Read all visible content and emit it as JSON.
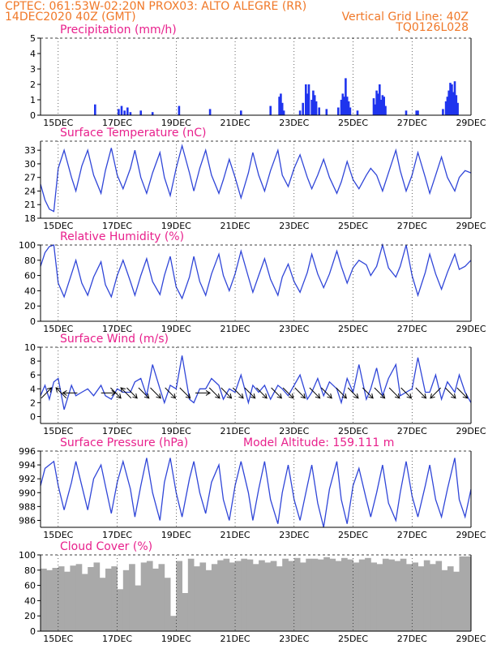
{
  "header": {
    "line1_left": "CPTEC:  061:53W-02:20N  PROX03: ALTO ALEGRE (RR)",
    "line2_left": "14DEC2020 40Z (GMT)",
    "line2_right": "Vertical Grid Line: 40Z",
    "line3_right": "TQ0126L028"
  },
  "colors": {
    "header": "#f07828",
    "panel_title": "#e8208c",
    "series": "#3046d8",
    "precip_bar": "#1f34ee",
    "cloud_fill": "#a9a9a9"
  },
  "chart_data": [
    {
      "id": "precip",
      "type": "bar",
      "title": "Precipitation (mm/h)",
      "x_labels": [
        "15DEC",
        "17DEC",
        "19DEC",
        "21DEC",
        "23DEC",
        "25DEC",
        "27DEC",
        "29DEC"
      ],
      "ylim": [
        0,
        5
      ],
      "yticks": [
        0,
        1,
        2,
        3,
        4,
        5
      ],
      "grid": "vertical dotted",
      "x_day_range": [
        14.4,
        29.0
      ],
      "x": [
        16.25,
        17.05,
        17.15,
        17.25,
        17.35,
        17.45,
        17.8,
        18.2,
        19.1,
        20.15,
        21.2,
        22.2,
        22.5,
        22.55,
        22.6,
        22.65,
        23.2,
        23.3,
        23.4,
        23.45,
        23.5,
        23.6,
        23.65,
        23.7,
        23.75,
        23.85,
        24.1,
        24.5,
        24.6,
        24.65,
        24.7,
        24.75,
        24.8,
        24.85,
        24.9,
        25.15,
        25.7,
        25.75,
        25.8,
        25.85,
        25.9,
        25.95,
        26.0,
        26.05,
        26.1,
        26.8,
        27.15,
        27.2,
        28.05,
        28.15,
        28.2,
        28.25,
        28.3,
        28.35,
        28.4,
        28.45,
        28.5,
        28.55
      ],
      "values": [
        0.7,
        0.4,
        0.6,
        0.3,
        0.5,
        0.2,
        0.3,
        0.2,
        0.6,
        0.4,
        0.3,
        0.6,
        1.2,
        1.4,
        0.8,
        0.3,
        0.3,
        0.8,
        2.0,
        1.4,
        2.0,
        1.0,
        1.6,
        1.3,
        0.9,
        0.5,
        0.4,
        0.5,
        1.0,
        1.4,
        1.2,
        2.4,
        1.2,
        0.9,
        0.5,
        0.3,
        1.1,
        0.7,
        1.6,
        1.4,
        2.0,
        1.0,
        1.3,
        1.2,
        0.6,
        0.3,
        0.3,
        0.3,
        0.4,
        0.9,
        1.2,
        1.6,
        2.1,
        2.0,
        1.5,
        2.2,
        1.3,
        0.8
      ]
    },
    {
      "id": "temp",
      "type": "line",
      "title": "Surface Temperature (nC)",
      "x_labels": [
        "15DEC",
        "17DEC",
        "19DEC",
        "21DEC",
        "23DEC",
        "25DEC",
        "27DEC",
        "29DEC"
      ],
      "ylim": [
        18,
        35
      ],
      "yticks": [
        18,
        21,
        24,
        27,
        30,
        33
      ],
      "grid": "vertical dotted",
      "x_day_range": [
        14.4,
        29.0
      ],
      "x": [
        14.4,
        14.55,
        14.7,
        14.85,
        15.0,
        15.2,
        15.45,
        15.6,
        15.8,
        16.0,
        16.2,
        16.45,
        16.6,
        16.8,
        17.0,
        17.2,
        17.45,
        17.6,
        17.8,
        18.0,
        18.2,
        18.45,
        18.6,
        18.8,
        19.0,
        19.2,
        19.45,
        19.6,
        19.8,
        20.0,
        20.2,
        20.45,
        20.6,
        20.8,
        21.0,
        21.2,
        21.45,
        21.6,
        21.8,
        22.0,
        22.2,
        22.45,
        22.6,
        22.8,
        23.0,
        23.2,
        23.45,
        23.6,
        23.8,
        24.0,
        24.2,
        24.45,
        24.6,
        24.8,
        25.0,
        25.2,
        25.45,
        25.6,
        25.8,
        26.0,
        26.2,
        26.45,
        26.6,
        26.8,
        27.0,
        27.2,
        27.45,
        27.6,
        27.8,
        28.0,
        28.2,
        28.45,
        28.6,
        28.8,
        29.0
      ],
      "values": [
        25.5,
        22.0,
        20.0,
        19.5,
        29.0,
        33.0,
        27.0,
        24.0,
        29.5,
        33.0,
        27.5,
        23.5,
        28.5,
        33.5,
        27.5,
        24.5,
        29.0,
        33.0,
        27.0,
        23.5,
        28.0,
        32.5,
        27.0,
        23.0,
        29.0,
        34.0,
        28.0,
        24.0,
        29.0,
        33.0,
        27.5,
        23.5,
        26.5,
        31.0,
        27.0,
        22.5,
        28.0,
        32.5,
        27.5,
        24.0,
        28.5,
        33.0,
        27.5,
        25.0,
        29.0,
        32.0,
        27.0,
        24.5,
        27.5,
        31.0,
        27.0,
        23.5,
        26.0,
        30.5,
        26.5,
        24.5,
        27.5,
        29.0,
        27.5,
        24.0,
        28.0,
        33.0,
        28.5,
        24.0,
        27.5,
        32.5,
        27.0,
        23.5,
        27.5,
        31.5,
        27.0,
        24.0,
        27.0,
        28.5,
        28.0
      ]
    },
    {
      "id": "rh",
      "type": "line",
      "title": "Relative Humidity (%)",
      "x_labels": [
        "15DEC",
        "17DEC",
        "19DEC",
        "21DEC",
        "23DEC",
        "25DEC",
        "27DEC",
        "29DEC"
      ],
      "ylim": [
        0,
        100
      ],
      "yticks": [
        0,
        20,
        40,
        60,
        80,
        100
      ],
      "grid": "vertical dotted",
      "x_day_range": [
        14.4,
        29.0
      ],
      "x": [
        14.4,
        14.55,
        14.7,
        14.85,
        15.0,
        15.2,
        15.45,
        15.6,
        15.8,
        16.0,
        16.2,
        16.45,
        16.6,
        16.8,
        17.0,
        17.2,
        17.45,
        17.6,
        17.8,
        18.0,
        18.2,
        18.45,
        18.6,
        18.8,
        19.0,
        19.2,
        19.45,
        19.6,
        19.8,
        20.0,
        20.2,
        20.45,
        20.6,
        20.8,
        21.0,
        21.2,
        21.45,
        21.6,
        21.8,
        22.0,
        22.2,
        22.45,
        22.6,
        22.8,
        23.0,
        23.2,
        23.45,
        23.6,
        23.8,
        24.0,
        24.2,
        24.45,
        24.6,
        24.8,
        25.0,
        25.2,
        25.45,
        25.6,
        25.8,
        26.0,
        26.2,
        26.45,
        26.6,
        26.8,
        27.0,
        27.2,
        27.45,
        27.6,
        27.8,
        28.0,
        28.2,
        28.45,
        28.6,
        28.8,
        29.0
      ],
      "values": [
        72.0,
        90.0,
        98.0,
        100.0,
        50.0,
        32.0,
        62.0,
        80.0,
        50.0,
        34.0,
        58.0,
        78.0,
        48.0,
        32.0,
        60.0,
        80.0,
        52.0,
        34.0,
        60.0,
        82.0,
        52.0,
        35.0,
        60.0,
        85.0,
        45.0,
        30.0,
        58.0,
        85.0,
        52.0,
        34.0,
        62.0,
        88.0,
        60.0,
        40.0,
        62.0,
        92.0,
        58.0,
        38.0,
        60.0,
        82.0,
        55.0,
        34.0,
        58.0,
        75.0,
        52.0,
        38.0,
        64.0,
        88.0,
        62.0,
        44.0,
        62.0,
        92.0,
        72.0,
        50.0,
        70.0,
        80.0,
        74.0,
        60.0,
        72.0,
        100.0,
        70.0,
        58.0,
        72.0,
        100.0,
        60.0,
        34.0,
        64.0,
        88.0,
        62.0,
        42.0,
        64.0,
        88.0,
        68.0,
        72.0,
        80.0
      ]
    },
    {
      "id": "wind",
      "type": "line",
      "title": "Surface Wind (m/s)",
      "x_labels": [
        "15DEC",
        "17DEC",
        "19DEC",
        "21DEC",
        "23DEC",
        "25DEC",
        "27DEC",
        "29DEC"
      ],
      "ylim": [
        -1,
        10
      ],
      "yticks": [
        0,
        2,
        4,
        6,
        8,
        10
      ],
      "grid": "vertical dotted",
      "x_day_range": [
        14.4,
        29.0
      ],
      "x": [
        14.4,
        14.55,
        14.7,
        14.85,
        15.0,
        15.2,
        15.45,
        15.6,
        15.8,
        16.0,
        16.2,
        16.45,
        16.6,
        16.8,
        17.0,
        17.2,
        17.45,
        17.6,
        17.8,
        18.0,
        18.2,
        18.45,
        18.6,
        18.8,
        19.0,
        19.2,
        19.45,
        19.6,
        19.8,
        20.0,
        20.2,
        20.45,
        20.6,
        20.8,
        21.0,
        21.2,
        21.45,
        21.6,
        21.8,
        22.0,
        22.2,
        22.45,
        22.6,
        22.8,
        23.0,
        23.2,
        23.45,
        23.6,
        23.8,
        24.0,
        24.2,
        24.45,
        24.6,
        24.8,
        25.0,
        25.2,
        25.45,
        25.6,
        25.8,
        26.0,
        26.2,
        26.45,
        26.6,
        26.8,
        27.0,
        27.2,
        27.45,
        27.6,
        27.8,
        28.0,
        28.2,
        28.45,
        28.6,
        28.8,
        29.0
      ],
      "values": [
        3.0,
        4.5,
        2.5,
        5.0,
        5.5,
        1.0,
        4.5,
        3.0,
        3.5,
        4.0,
        3.0,
        4.5,
        3.0,
        2.5,
        4.0,
        3.5,
        3.5,
        5.0,
        5.5,
        3.0,
        7.5,
        4.0,
        2.0,
        4.5,
        4.0,
        8.8,
        2.5,
        2.0,
        4.0,
        4.0,
        5.5,
        4.5,
        2.5,
        4.0,
        3.5,
        6.0,
        2.0,
        4.5,
        3.5,
        4.5,
        2.5,
        4.5,
        4.0,
        3.0,
        4.5,
        6.0,
        2.5,
        3.5,
        5.5,
        3.0,
        5.0,
        4.0,
        2.0,
        5.5,
        3.5,
        7.5,
        2.5,
        4.0,
        7.0,
        3.0,
        5.5,
        7.5,
        3.0,
        3.5,
        4.0,
        8.5,
        3.5,
        3.5,
        6.0,
        2.5,
        5.0,
        3.5,
        6.0,
        3.5,
        2.0
      ],
      "arrows": [
        {
          "day": 14.6,
          "dx": 1,
          "dy": -1
        },
        {
          "day": 15.1,
          "dx": -1,
          "dy": -1
        },
        {
          "day": 15.4,
          "dx": -1,
          "dy": 0
        },
        {
          "day": 16.7,
          "dx": 1,
          "dy": 0
        },
        {
          "day": 16.95,
          "dx": 1,
          "dy": 1
        },
        {
          "day": 17.3,
          "dx": -1,
          "dy": -1
        },
        {
          "day": 17.5,
          "dx": 1,
          "dy": 1
        },
        {
          "day": 17.9,
          "dx": 1,
          "dy": 1
        },
        {
          "day": 18.3,
          "dx": 1,
          "dy": 1
        },
        {
          "day": 18.8,
          "dx": 1,
          "dy": 1
        },
        {
          "day": 19.3,
          "dx": 1,
          "dy": 1
        },
        {
          "day": 19.9,
          "dx": 1,
          "dy": 0
        },
        {
          "day": 20.3,
          "dx": 1,
          "dy": 1
        },
        {
          "day": 20.7,
          "dx": 1,
          "dy": 1
        },
        {
          "day": 21.1,
          "dx": 1,
          "dy": 1
        },
        {
          "day": 21.5,
          "dx": 1,
          "dy": 1
        },
        {
          "day": 21.9,
          "dx": 1,
          "dy": 1
        },
        {
          "day": 22.4,
          "dx": 1,
          "dy": 1
        },
        {
          "day": 22.8,
          "dx": 1,
          "dy": 1
        },
        {
          "day": 23.2,
          "dx": 1,
          "dy": 1
        },
        {
          "day": 23.7,
          "dx": 1,
          "dy": 1
        },
        {
          "day": 24.1,
          "dx": 1,
          "dy": 1
        },
        {
          "day": 24.6,
          "dx": 1,
          "dy": 1
        },
        {
          "day": 25.0,
          "dx": 1,
          "dy": 1
        },
        {
          "day": 25.5,
          "dx": 1,
          "dy": 1
        },
        {
          "day": 25.9,
          "dx": 1,
          "dy": 1
        },
        {
          "day": 26.4,
          "dx": 1,
          "dy": 1
        },
        {
          "day": 26.8,
          "dx": 1,
          "dy": 1
        },
        {
          "day": 27.3,
          "dx": 1,
          "dy": 1
        },
        {
          "day": 27.8,
          "dx": -1,
          "dy": 1
        },
        {
          "day": 28.3,
          "dx": 1,
          "dy": 1
        },
        {
          "day": 28.7,
          "dx": 1,
          "dy": 1
        }
      ]
    },
    {
      "id": "pres",
      "type": "line",
      "title": "Surface Pressure (hPa)",
      "annotation": "Model Altitude: 159.111  m",
      "x_labels": [
        "15DEC",
        "17DEC",
        "19DEC",
        "21DEC",
        "23DEC",
        "25DEC",
        "27DEC",
        "29DEC"
      ],
      "ylim": [
        985,
        996
      ],
      "yticks": [
        986,
        988,
        990,
        992,
        994,
        996
      ],
      "grid": "vertical dotted",
      "x_day_range": [
        14.4,
        29.0
      ],
      "x": [
        14.4,
        14.55,
        14.7,
        14.85,
        15.0,
        15.2,
        15.45,
        15.6,
        15.8,
        16.0,
        16.2,
        16.45,
        16.6,
        16.8,
        17.0,
        17.2,
        17.45,
        17.6,
        17.8,
        18.0,
        18.2,
        18.45,
        18.6,
        18.8,
        19.0,
        19.2,
        19.45,
        19.6,
        19.8,
        20.0,
        20.2,
        20.45,
        20.6,
        20.8,
        21.0,
        21.2,
        21.45,
        21.6,
        21.8,
        22.0,
        22.2,
        22.45,
        22.6,
        22.8,
        23.0,
        23.2,
        23.45,
        23.6,
        23.8,
        24.0,
        24.2,
        24.45,
        24.6,
        24.8,
        25.0,
        25.2,
        25.45,
        25.6,
        25.8,
        26.0,
        26.2,
        26.45,
        26.6,
        26.8,
        27.0,
        27.2,
        27.45,
        27.6,
        27.8,
        28.0,
        28.2,
        28.45,
        28.6,
        28.8,
        29.0
      ],
      "values": [
        991.0,
        993.5,
        994.0,
        994.5,
        991.0,
        987.5,
        991.5,
        994.5,
        991.0,
        987.5,
        992.0,
        994.0,
        991.0,
        987.0,
        991.5,
        994.5,
        990.5,
        986.5,
        991.0,
        995.0,
        990.0,
        986.0,
        991.5,
        995.0,
        990.0,
        986.5,
        992.0,
        994.5,
        990.0,
        987.0,
        991.5,
        994.0,
        989.0,
        986.0,
        991.0,
        994.5,
        990.0,
        986.0,
        990.5,
        994.5,
        989.0,
        985.5,
        990.0,
        994.0,
        989.0,
        986.0,
        991.0,
        994.0,
        988.5,
        985.0,
        990.5,
        994.5,
        989.0,
        985.5,
        991.0,
        993.5,
        989.0,
        986.5,
        990.0,
        994.0,
        988.5,
        986.0,
        990.0,
        994.5,
        989.5,
        986.5,
        991.0,
        994.0,
        989.0,
        986.5,
        990.5,
        995.0,
        989.0,
        986.5,
        990.5
      ]
    },
    {
      "id": "cloud",
      "type": "area",
      "title": "Cloud Cover (%)",
      "x_labels": [
        "15DEC",
        "17DEC",
        "19DEC",
        "21DEC",
        "23DEC",
        "25DEC",
        "27DEC",
        "29DEC"
      ],
      "ylim": [
        0,
        100
      ],
      "yticks": [
        0,
        20,
        40,
        60,
        80,
        100
      ],
      "grid": "vertical dotted",
      "x_day_range": [
        14.4,
        29.0
      ],
      "x": [
        14.4,
        14.6,
        14.8,
        15.0,
        15.2,
        15.4,
        15.6,
        15.8,
        16.0,
        16.2,
        16.4,
        16.6,
        16.8,
        17.0,
        17.2,
        17.4,
        17.6,
        17.8,
        18.0,
        18.2,
        18.4,
        18.6,
        18.8,
        19.0,
        19.2,
        19.4,
        19.6,
        19.8,
        20.0,
        20.2,
        20.4,
        20.6,
        20.8,
        21.0,
        21.2,
        21.4,
        21.6,
        21.8,
        22.0,
        22.2,
        22.4,
        22.6,
        22.8,
        23.0,
        23.2,
        23.4,
        23.6,
        23.8,
        24.0,
        24.2,
        24.4,
        24.6,
        24.8,
        25.0,
        25.2,
        25.4,
        25.6,
        25.8,
        26.0,
        26.2,
        26.4,
        26.6,
        26.8,
        27.0,
        27.2,
        27.4,
        27.6,
        27.8,
        28.0,
        28.2,
        28.4,
        28.6,
        28.8,
        29.0
      ],
      "values": [
        82,
        80,
        83,
        85,
        78,
        86,
        88,
        75,
        84,
        90,
        70,
        82,
        85,
        55,
        80,
        88,
        60,
        90,
        92,
        82,
        88,
        70,
        20,
        92,
        50,
        95,
        85,
        90,
        80,
        88,
        93,
        95,
        90,
        92,
        95,
        94,
        88,
        93,
        90,
        92,
        85,
        95,
        92,
        96,
        90,
        95,
        95,
        94,
        97,
        95,
        92,
        96,
        94,
        90,
        94,
        96,
        90,
        88,
        95,
        94,
        92,
        95,
        88,
        90,
        85,
        93,
        88,
        92,
        80,
        85,
        78,
        98,
        98,
        98
      ]
    }
  ]
}
